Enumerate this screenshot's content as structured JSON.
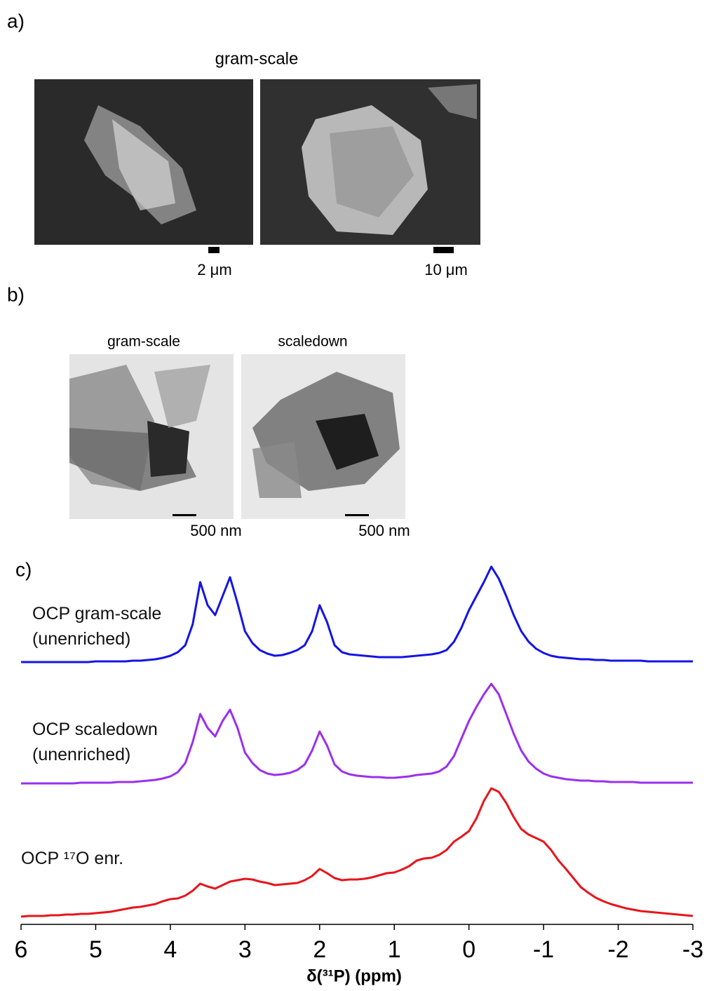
{
  "panel_a": {
    "label": "a)",
    "title": "gram-scale",
    "scale_labels": [
      "2 μm",
      "10 μm"
    ]
  },
  "panel_b": {
    "label": "b)",
    "titles": [
      "gram-scale",
      "scaledown"
    ],
    "scale_labels": [
      "500 nm",
      "500 nm"
    ]
  },
  "chart_data": {
    "type": "line",
    "label": "c)",
    "x_label": "δ(³¹P) (ppm)",
    "xlim": [
      6,
      -3
    ],
    "xticks": [
      6,
      5,
      4,
      3,
      2,
      1,
      0,
      -1,
      -2,
      -3
    ],
    "x": [
      6.0,
      5.9,
      5.8,
      5.7,
      5.6,
      5.5,
      5.4,
      5.3,
      5.2,
      5.1,
      5.0,
      4.9,
      4.8,
      4.7,
      4.6,
      4.5,
      4.4,
      4.3,
      4.2,
      4.1,
      4.0,
      3.9,
      3.8,
      3.7,
      3.6,
      3.5,
      3.4,
      3.3,
      3.2,
      3.1,
      3.0,
      2.9,
      2.8,
      2.7,
      2.6,
      2.5,
      2.4,
      2.3,
      2.2,
      2.1,
      2.0,
      1.9,
      1.8,
      1.7,
      1.6,
      1.5,
      1.4,
      1.3,
      1.2,
      1.1,
      1.0,
      0.9,
      0.8,
      0.7,
      0.6,
      0.5,
      0.4,
      0.3,
      0.2,
      0.1,
      0.0,
      -0.1,
      -0.2,
      -0.3,
      -0.4,
      -0.5,
      -0.6,
      -0.7,
      -0.8,
      -0.9,
      -1.0,
      -1.1,
      -1.2,
      -1.3,
      -1.4,
      -1.5,
      -1.6,
      -1.7,
      -1.8,
      -1.9,
      -2.0,
      -2.1,
      -2.2,
      -2.3,
      -2.4,
      -2.5,
      -2.6,
      -2.7,
      -2.8,
      -2.9,
      -3.0
    ],
    "series": [
      {
        "name": "OCP gram-scale\n(unenriched)",
        "color": "#1414e6",
        "values": [
          1,
          1,
          1,
          1,
          1,
          1,
          1,
          1,
          1,
          1,
          2,
          2,
          2,
          2,
          2,
          3,
          3,
          4,
          5,
          7,
          10,
          15,
          25,
          55,
          115,
          82,
          68,
          95,
          122,
          85,
          45,
          28,
          18,
          13,
          10,
          11,
          14,
          18,
          25,
          45,
          82,
          58,
          25,
          15,
          12,
          11,
          10,
          9,
          8,
          8,
          8,
          8,
          9,
          10,
          11,
          12,
          14,
          18,
          30,
          50,
          75,
          95,
          115,
          137,
          120,
          95,
          68,
          45,
          30,
          20,
          14,
          10,
          8,
          7,
          6,
          5,
          5,
          4,
          4,
          3,
          3,
          3,
          3,
          3,
          2,
          2,
          2,
          2,
          2,
          2,
          2
        ]
      },
      {
        "name": "OCP scaledown\n(unenriched)",
        "color": "#9a2ff0",
        "values": [
          1,
          1,
          1,
          1,
          1,
          1,
          1,
          1,
          2,
          2,
          2,
          2,
          2,
          3,
          3,
          3,
          4,
          5,
          6,
          8,
          11,
          17,
          30,
          60,
          100,
          80,
          68,
          90,
          106,
          80,
          45,
          30,
          20,
          15,
          13,
          14,
          16,
          20,
          28,
          48,
          75,
          55,
          28,
          18,
          14,
          12,
          11,
          10,
          10,
          9,
          9,
          10,
          11,
          13,
          14,
          15,
          18,
          25,
          40,
          65,
          90,
          110,
          128,
          143,
          128,
          100,
          72,
          48,
          32,
          22,
          15,
          11,
          9,
          7,
          6,
          5,
          5,
          4,
          4,
          3,
          3,
          3,
          3,
          2,
          2,
          2,
          2,
          2,
          2,
          2,
          2
        ]
      },
      {
        "name": "OCP ¹⁷O enr.",
        "color": "#e8141c",
        "values": [
          0,
          1,
          1,
          1,
          2,
          2,
          3,
          3,
          4,
          4,
          5,
          6,
          7,
          9,
          11,
          13,
          14,
          16,
          18,
          22,
          25,
          26,
          30,
          37,
          47,
          43,
          40,
          45,
          50,
          52,
          54,
          53,
          50,
          48,
          45,
          46,
          47,
          48,
          52,
          58,
          68,
          62,
          55,
          52,
          53,
          53,
          54,
          56,
          59,
          62,
          63,
          67,
          72,
          80,
          83,
          84,
          88,
          95,
          107,
          114,
          122,
          140,
          165,
          183,
          178,
          162,
          142,
          125,
          117,
          112,
          107,
          95,
          80,
          68,
          55,
          42,
          34,
          27,
          22,
          18,
          15,
          12,
          10,
          8,
          7,
          6,
          5,
          4,
          3,
          2,
          1
        ]
      }
    ]
  }
}
